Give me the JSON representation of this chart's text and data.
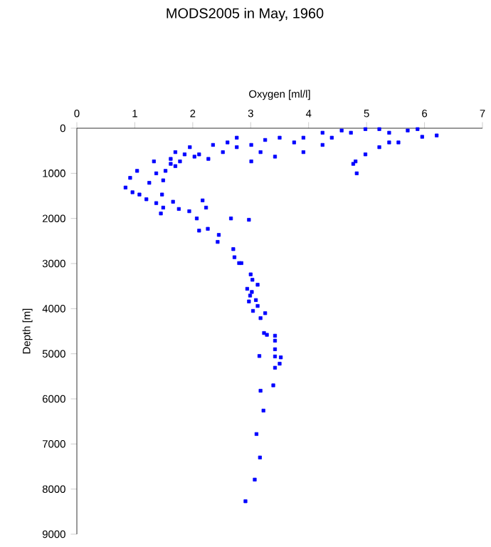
{
  "chart_data": {
    "type": "scatter",
    "title": "MODS2005 in May, 1960",
    "xlabel": "Oxygen [ml/l]",
    "ylabel": "Depth [m]",
    "xlim": [
      0,
      7
    ],
    "xticks": [
      0,
      1,
      2,
      3,
      4,
      5,
      6,
      7
    ],
    "ylim": [
      9000,
      0
    ],
    "yticks": [
      0,
      1000,
      2000,
      3000,
      4000,
      5000,
      6000,
      7000,
      8000,
      9000
    ],
    "grid": false,
    "marker": "square",
    "series": [
      {
        "color": "#0000ff",
        "x": [
          6.21,
          5.96,
          5.71,
          5.39,
          5.55,
          5.22,
          4.98,
          4.81,
          4.83,
          4.77,
          4.57,
          4.4,
          4.24,
          3.91,
          3.75,
          3.5,
          3.42,
          3.17,
          3.01,
          3.01,
          2.76,
          2.76,
          2.52,
          2.35,
          2.27,
          2.11,
          2.03,
          1.86,
          1.78,
          1.7,
          1.62,
          1.53,
          1.49,
          1.37,
          1.33,
          1.25,
          1.04,
          0.92,
          0.84,
          0.96,
          1.08,
          1.2,
          1.47,
          1.37,
          1.49,
          1.45,
          1.66,
          1.76,
          1.94,
          2.17,
          2.23,
          2.07,
          2.11,
          2.26,
          2.45,
          2.66,
          2.97,
          4.73,
          5.22,
          4.98,
          5.88,
          5.39,
          4.24,
          3.91,
          3.25,
          2.6,
          1.95,
          1.7,
          1.62,
          2.43,
          2.7,
          2.72,
          2.8,
          2.84,
          3.0,
          3.03,
          3.12,
          2.94,
          3.02,
          2.99,
          3.09,
          2.97,
          3.12,
          3.04,
          3.25,
          3.17,
          3.23,
          3.28,
          3.42,
          3.42,
          3.42,
          3.15,
          3.42,
          3.52,
          3.5,
          3.42,
          3.39,
          3.17,
          3.22,
          3.1,
          3.16,
          3.07,
          2.91
        ],
        "values": [
          160,
          190,
          50,
          100,
          315,
          420,
          580,
          735,
          1000,
          790,
          50,
          210,
          370,
          530,
          315,
          210,
          630,
          530,
          370,
          735,
          210,
          420,
          530,
          370,
          680,
          580,
          630,
          580,
          735,
          840,
          680,
          945,
          1155,
          1000,
          735,
          1210,
          945,
          1100,
          1315,
          1420,
          1470,
          1575,
          1470,
          1660,
          1760,
          1890,
          1630,
          1790,
          1840,
          1600,
          1760,
          2000,
          2270,
          2230,
          2365,
          2000,
          2030,
          100,
          20,
          20,
          20,
          315,
          100,
          210,
          260,
          315,
          420,
          530,
          790,
          2520,
          2680,
          2860,
          2990,
          2990,
          3240,
          3360,
          3470,
          3560,
          3630,
          3710,
          3810,
          3840,
          3940,
          4050,
          4100,
          4210,
          4540,
          4580,
          4600,
          4710,
          4900,
          5050,
          5060,
          5080,
          5220,
          5310,
          5700,
          5820,
          6260,
          6780,
          7300,
          7790,
          8270
        ]
      }
    ]
  }
}
